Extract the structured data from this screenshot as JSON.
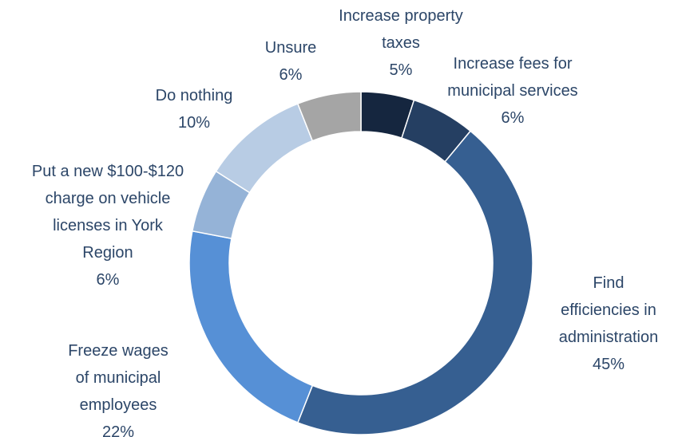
{
  "chart_data": {
    "type": "donut",
    "categories": [
      "Increase property\ntaxes",
      "Increase fees for\nmunicipal services",
      "Find\nefficiencies in\nadministration",
      "Freeze wages\nof municipal\nemployees",
      "Put a new $100-$120\ncharge on vehicle\nlicenses in York\nRegion",
      "Do nothing",
      "Unsure"
    ],
    "values": [
      5,
      6,
      45,
      22,
      6,
      10,
      6
    ],
    "value_labels": [
      "5%",
      "6%",
      "45%",
      "22%",
      "6%",
      "10%",
      "6%"
    ],
    "colors": [
      "#15263f",
      "#253f62",
      "#365f91",
      "#5690d6",
      "#95b3d7",
      "#b8cce4",
      "#a5a5a5"
    ]
  }
}
